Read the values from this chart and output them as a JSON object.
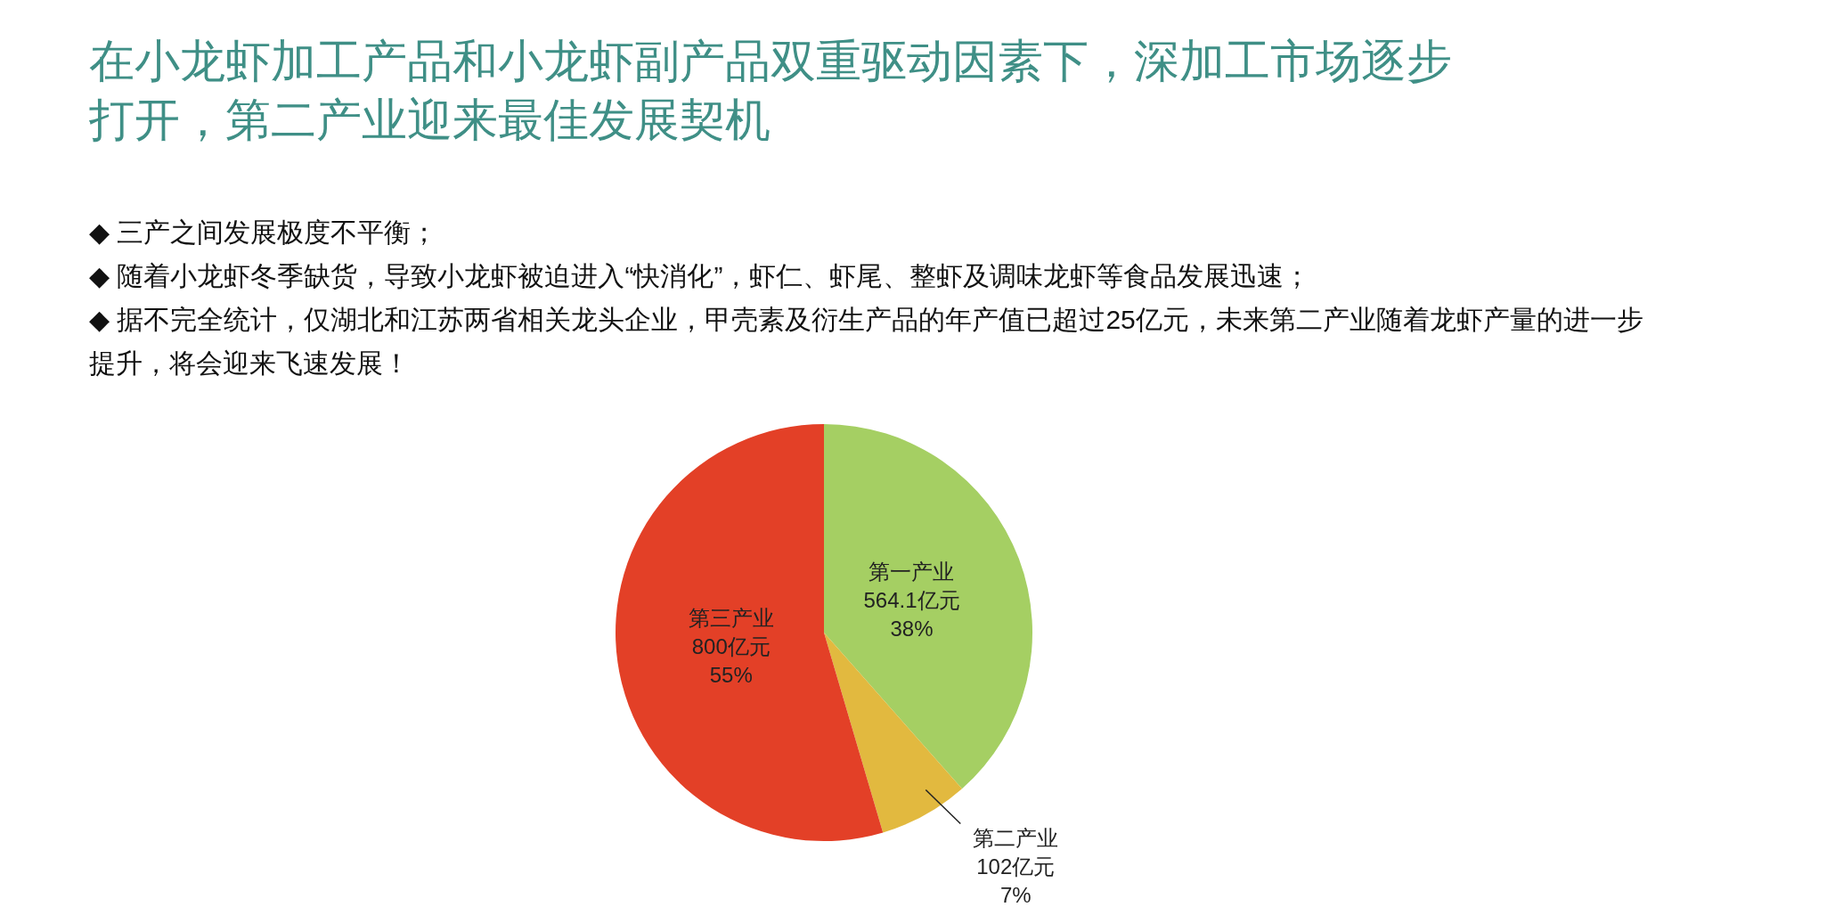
{
  "chart_data": {
    "type": "pie",
    "title": "在小龙虾加工产品和小龙虾副产品双重驱动因素下，深加工市场逐步打开，第二产业迎来最佳发展契机",
    "annotations": [
      "◆ 三产之间发展极度不平衡；",
      "◆ 随着小龙虾冬季缺货，导致小龙虾被迫进入“快消化”，虾仁、虾尾、整虾及调味龙虾等食品发展迅速；",
      "◆ 据不完全统计，仅湖北和江苏两省相关龙头企业，甲壳素及衍生产品的年产值已超过25亿元，未来第二产业随着龙虾产量的进一步提升，将会迎来飞速发展！"
    ],
    "categories": [
      "第一产业",
      "第二产业",
      "第三产业"
    ],
    "values": [
      564.1,
      102,
      800
    ],
    "colors": [
      "#a5cf63",
      "#e2b93f",
      "#e34027"
    ],
    "value_labels": [
      "564.1亿元\n38%",
      "102亿元\n7%",
      "800亿元\n55%"
    ]
  }
}
